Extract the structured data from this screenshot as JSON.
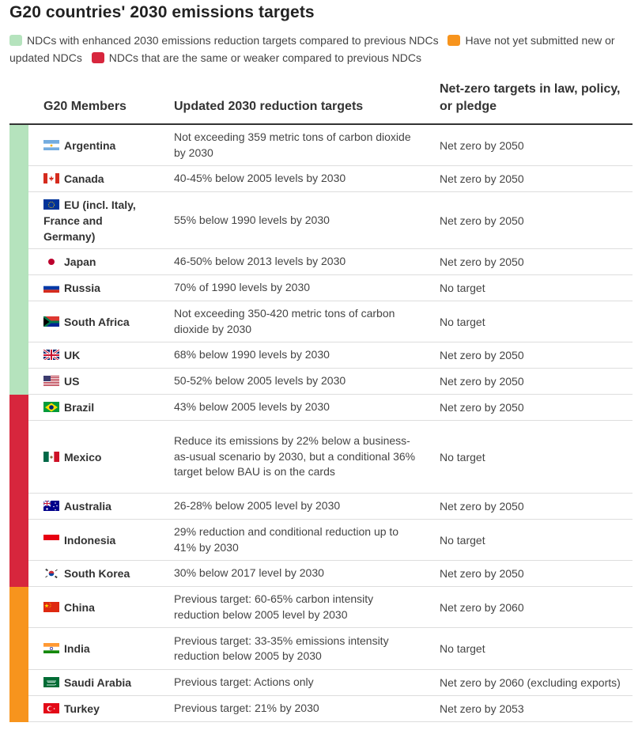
{
  "title": "G20 countries' 2030 emissions targets",
  "legend": [
    {
      "label": "NDCs with enhanced 2030 emissions reduction targets compared to previous NDCs",
      "color": "#b5e3bd"
    },
    {
      "label": "Have not yet submitted new or updated NDCs",
      "color": "#f7941d"
    },
    {
      "label": "NDCs that are the same or weaker compared to previous NDCs",
      "color": "#d7263d"
    }
  ],
  "headers": {
    "members": "G20 Members",
    "targets": "Updated 2030 reduction targets",
    "netzero": "Net-zero targets in law, policy, or pledge"
  },
  "rows": [
    {
      "country": "Argentina",
      "flag": "argentina-flag-icon",
      "status": "enhanced",
      "target": "Not exceeding 359 metric tons of carbon dioxide by 2030",
      "netzero": "Net zero by 2050"
    },
    {
      "country": "Canada",
      "flag": "canada-flag-icon",
      "status": "enhanced",
      "target": "40-45% below 2005 levels by 2030",
      "netzero": "Net zero by 2050"
    },
    {
      "country": "EU (incl. Italy, France and Germany)",
      "flag": "eu-flag-icon",
      "status": "enhanced",
      "target": "55% below 1990 levels by 2030",
      "netzero": "Net zero by 2050"
    },
    {
      "country": "Japan",
      "flag": "japan-flag-icon",
      "status": "enhanced",
      "target": "46-50% below 2013 levels by 2030",
      "netzero": "Net zero by 2050"
    },
    {
      "country": "Russia",
      "flag": "russia-flag-icon",
      "status": "enhanced",
      "target": "70% of 1990 levels by 2030",
      "netzero": "No target"
    },
    {
      "country": "South Africa",
      "flag": "south-africa-flag-icon",
      "status": "enhanced",
      "target": "Not exceeding 350-420 metric tons of carbon dioxide by 2030",
      "netzero": "No target"
    },
    {
      "country": "UK",
      "flag": "uk-flag-icon",
      "status": "enhanced",
      "target": "68% below 1990 levels by 2030",
      "netzero": "Net zero by 2050"
    },
    {
      "country": "US",
      "flag": "us-flag-icon",
      "status": "enhanced",
      "target": "50-52% below 2005 levels by 2030",
      "netzero": "Net zero by 2050"
    },
    {
      "country": "Brazil",
      "flag": "brazil-flag-icon",
      "status": "weaker",
      "target": "43% below 2005 levels by 2030",
      "netzero": "Net zero by 2050"
    },
    {
      "country": "Mexico",
      "flag": "mexico-flag-icon",
      "status": "weaker",
      "target": "Reduce its emissions by 22% below a business-as-usual scenario by 2030, but a conditional 36% target below BAU is on the cards",
      "netzero": "No target"
    },
    {
      "country": "Australia",
      "flag": "australia-flag-icon",
      "status": "weaker",
      "target": "26-28% below 2005 level by 2030",
      "netzero": "Net zero by 2050"
    },
    {
      "country": "Indonesia",
      "flag": "indonesia-flag-icon",
      "status": "weaker",
      "target": "29% reduction and conditional reduction up to 41% by 2030",
      "netzero": "No target"
    },
    {
      "country": "South Korea",
      "flag": "south-korea-flag-icon",
      "status": "weaker",
      "target": "30% below 2017 level by 2030",
      "netzero": "Net zero by 2050"
    },
    {
      "country": "China",
      "flag": "china-flag-icon",
      "status": "not-submitted",
      "target": "Previous target: 60-65% carbon intensity reduction below 2005 level by 2030",
      "netzero": "Net zero by 2060"
    },
    {
      "country": "India",
      "flag": "india-flag-icon",
      "status": "not-submitted",
      "target": "Previous target: 33-35% emissions intensity reduction below 2005 by 2030",
      "netzero": "No target"
    },
    {
      "country": "Saudi Arabia",
      "flag": "saudi-arabia-flag-icon",
      "status": "not-submitted",
      "target": "Previous target: Actions only",
      "netzero": "Net zero by 2060 (excluding exports)"
    },
    {
      "country": "Turkey",
      "flag": "turkey-flag-icon",
      "status": "not-submitted",
      "target": "Previous target: 21% by 2030",
      "netzero": "Net zero by 2053"
    }
  ],
  "status_colors": {
    "enhanced": "#b5e3bd",
    "weaker": "#d7263d",
    "not-submitted": "#f7941d"
  }
}
